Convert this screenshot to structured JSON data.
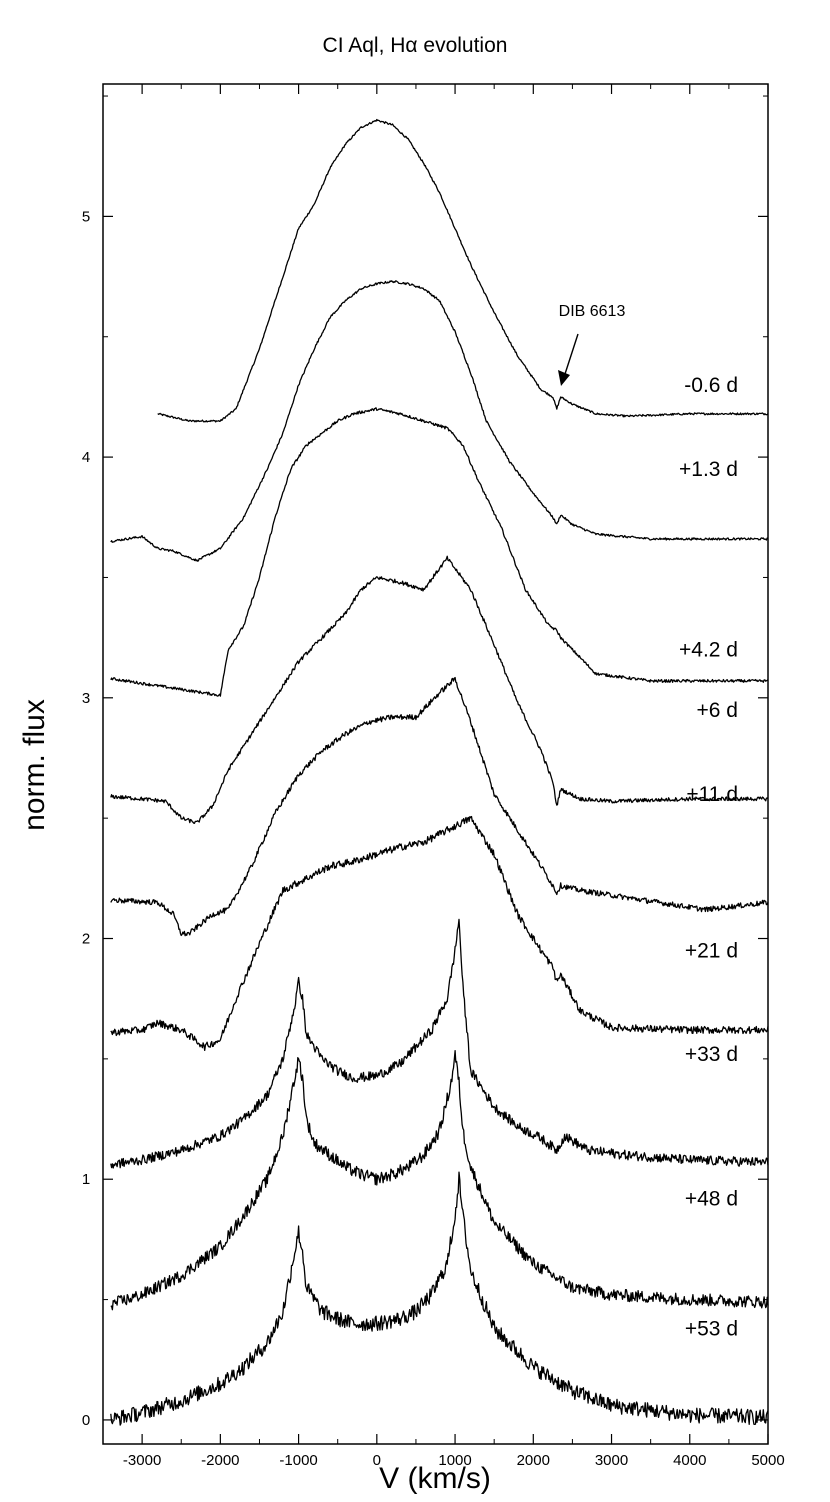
{
  "chart_data": {
    "type": "line",
    "title": "CI Aql, Hα evolution",
    "xlabel": "V (km/s)",
    "ylabel": "norm. flux",
    "xlim": [
      -3500,
      5000
    ],
    "ylim": [
      -0.1,
      5.55
    ],
    "x_ticks": [
      -3000,
      -2000,
      -1000,
      0,
      1000,
      2000,
      3000,
      4000,
      5000
    ],
    "y_ticks": [
      0,
      1,
      2,
      3,
      4,
      5
    ],
    "grid": false,
    "annotation": {
      "text": "DIB 6613",
      "x": 2300,
      "y": 4.3
    },
    "series": [
      {
        "name": "-0.6 d",
        "label_y": 4.3,
        "x_start": -2800,
        "x": [
          -2800,
          -2400,
          -2000,
          -1800,
          -1500,
          -1200,
          -1000,
          -800,
          -600,
          -400,
          -200,
          0,
          200,
          400,
          600,
          800,
          1000,
          1200,
          1500,
          1800,
          2100,
          2250,
          2300,
          2350,
          2500,
          2800,
          3200,
          4000,
          5000
        ],
        "y": [
          4.18,
          4.15,
          4.15,
          4.2,
          4.45,
          4.75,
          4.95,
          5.05,
          5.2,
          5.3,
          5.37,
          5.4,
          5.38,
          5.32,
          5.22,
          5.1,
          4.95,
          4.8,
          4.6,
          4.42,
          4.28,
          4.25,
          4.2,
          4.25,
          4.22,
          4.18,
          4.17,
          4.18,
          4.18
        ]
      },
      {
        "name": "+1.3 d",
        "label_y": 3.95,
        "x_start": -3400,
        "x": [
          -3400,
          -3000,
          -2800,
          -2600,
          -2300,
          -2000,
          -1700,
          -1400,
          -1200,
          -1000,
          -800,
          -600,
          -400,
          -200,
          0,
          200,
          400,
          600,
          800,
          1000,
          1200,
          1400,
          1700,
          2000,
          2250,
          2300,
          2350,
          2500,
          2800,
          3500,
          5000
        ],
        "y": [
          3.65,
          3.67,
          3.62,
          3.61,
          3.57,
          3.62,
          3.75,
          3.95,
          4.1,
          4.3,
          4.45,
          4.58,
          4.65,
          4.7,
          4.72,
          4.73,
          4.72,
          4.7,
          4.65,
          4.52,
          4.35,
          4.15,
          3.98,
          3.85,
          3.75,
          3.72,
          3.76,
          3.72,
          3.68,
          3.66,
          3.66
        ]
      },
      {
        "name": "+4.2 d",
        "label_y": 3.2,
        "x_start": -3400,
        "x": [
          -3400,
          -3000,
          -2600,
          -2200,
          -2000,
          -1900,
          -1700,
          -1500,
          -1300,
          -1100,
          -900,
          -700,
          -500,
          -300,
          0,
          300,
          600,
          900,
          1100,
          1300,
          1600,
          1900,
          2200,
          2300,
          2350,
          2500,
          2800,
          3500,
          5000
        ],
        "y": [
          3.08,
          3.06,
          3.04,
          3.02,
          3.01,
          3.2,
          3.3,
          3.5,
          3.75,
          3.95,
          4.05,
          4.1,
          4.15,
          4.18,
          4.2,
          4.18,
          4.15,
          4.12,
          4.05,
          3.9,
          3.7,
          3.45,
          3.3,
          3.28,
          3.25,
          3.2,
          3.1,
          3.07,
          3.07
        ]
      },
      {
        "name": "+6 d",
        "label_y": 2.95,
        "x_start": -3400,
        "x": [
          -3400,
          -3000,
          -2700,
          -2500,
          -2300,
          -2100,
          -1900,
          -1600,
          -1300,
          -1000,
          -700,
          -400,
          -200,
          0,
          300,
          600,
          900,
          1200,
          1500,
          1800,
          2100,
          2250,
          2300,
          2350,
          2600,
          3000,
          4000,
          5000
        ],
        "y": [
          2.59,
          2.58,
          2.57,
          2.5,
          2.48,
          2.55,
          2.7,
          2.85,
          3.0,
          3.15,
          3.25,
          3.35,
          3.45,
          3.5,
          3.48,
          3.45,
          3.58,
          3.45,
          3.22,
          2.98,
          2.78,
          2.65,
          2.55,
          2.62,
          2.58,
          2.57,
          2.58,
          2.58
        ]
      },
      {
        "name": "+11 d",
        "label_y": 2.6,
        "x_start": -3400,
        "x": [
          -3400,
          -2800,
          -2600,
          -2500,
          -2400,
          -2250,
          -2100,
          -1900,
          -1600,
          -1300,
          -1000,
          -700,
          -400,
          -100,
          200,
          500,
          800,
          1000,
          1200,
          1500,
          1800,
          2100,
          2250,
          2300,
          2350,
          2600,
          3000,
          3600,
          4200,
          5000
        ],
        "y": [
          2.16,
          2.15,
          2.1,
          2.02,
          2.02,
          2.06,
          2.1,
          2.12,
          2.3,
          2.52,
          2.68,
          2.78,
          2.85,
          2.9,
          2.92,
          2.92,
          3.02,
          3.08,
          2.9,
          2.6,
          2.45,
          2.3,
          2.22,
          2.19,
          2.22,
          2.2,
          2.18,
          2.15,
          2.12,
          2.15
        ]
      },
      {
        "name": "+21 d",
        "label_y": 1.95,
        "x_start": -3400,
        "x": [
          -3400,
          -3000,
          -2800,
          -2500,
          -2200,
          -2000,
          -1800,
          -1500,
          -1200,
          -900,
          -600,
          -300,
          0,
          300,
          600,
          900,
          1200,
          1500,
          1800,
          2100,
          2250,
          2300,
          2350,
          2600,
          3000,
          4000,
          5000
        ],
        "y": [
          1.61,
          1.62,
          1.65,
          1.62,
          1.55,
          1.58,
          1.75,
          1.98,
          2.2,
          2.25,
          2.3,
          2.32,
          2.35,
          2.38,
          2.4,
          2.45,
          2.5,
          2.35,
          2.1,
          1.95,
          1.88,
          1.82,
          1.85,
          1.7,
          1.63,
          1.62,
          1.62
        ]
      },
      {
        "name": "+33 d",
        "label_y": 1.52,
        "x_start": -3400,
        "x": [
          -3400,
          -3000,
          -2500,
          -2000,
          -1700,
          -1400,
          -1200,
          -1050,
          -1000,
          -950,
          -900,
          -700,
          -500,
          -300,
          0,
          300,
          500,
          700,
          900,
          1000,
          1050,
          1100,
          1200,
          1500,
          1800,
          2100,
          2300,
          2400,
          2700,
          3200,
          4000,
          5000
        ],
        "y": [
          1.06,
          1.08,
          1.12,
          1.18,
          1.25,
          1.35,
          1.5,
          1.72,
          1.82,
          1.75,
          1.6,
          1.5,
          1.45,
          1.42,
          1.43,
          1.48,
          1.55,
          1.62,
          1.75,
          1.95,
          2.08,
          1.8,
          1.45,
          1.3,
          1.22,
          1.17,
          1.12,
          1.18,
          1.12,
          1.1,
          1.08,
          1.07
        ]
      },
      {
        "name": "+48 d",
        "label_y": 0.92,
        "x_start": -3400,
        "x": [
          -3400,
          -3000,
          -2500,
          -2000,
          -1700,
          -1400,
          -1200,
          -1050,
          -1000,
          -950,
          -900,
          -800,
          -600,
          -400,
          -200,
          0,
          200,
          400,
          600,
          800,
          950,
          1000,
          1050,
          1100,
          1200,
          1500,
          2000,
          2500,
          3000,
          4000,
          5000
        ],
        "y": [
          0.48,
          0.52,
          0.6,
          0.72,
          0.85,
          1.0,
          1.18,
          1.42,
          1.5,
          1.42,
          1.25,
          1.15,
          1.1,
          1.05,
          1.02,
          1.0,
          1.02,
          1.05,
          1.1,
          1.2,
          1.4,
          1.52,
          1.4,
          1.2,
          1.05,
          0.82,
          0.65,
          0.55,
          0.52,
          0.5,
          0.49
        ]
      },
      {
        "name": "+53 d",
        "label_y": 0.38,
        "x_start": -3400,
        "x": [
          -3400,
          -3000,
          -2500,
          -2000,
          -1700,
          -1400,
          -1200,
          -1050,
          -1000,
          -950,
          -900,
          -700,
          -500,
          -300,
          0,
          300,
          500,
          700,
          900,
          1000,
          1050,
          1100,
          1200,
          1500,
          2000,
          2500,
          3000,
          4000,
          5000
        ],
        "y": [
          0.0,
          0.03,
          0.08,
          0.15,
          0.22,
          0.32,
          0.45,
          0.7,
          0.78,
          0.7,
          0.55,
          0.45,
          0.42,
          0.4,
          0.4,
          0.42,
          0.45,
          0.52,
          0.65,
          0.85,
          1.0,
          0.85,
          0.62,
          0.38,
          0.22,
          0.12,
          0.06,
          0.02,
          0.01
        ]
      }
    ]
  }
}
